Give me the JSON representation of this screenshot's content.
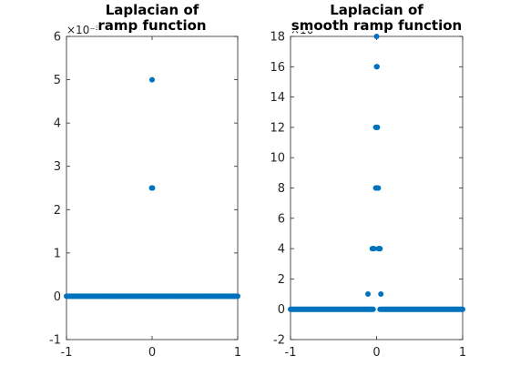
{
  "chart_data": [
    {
      "type": "scatter",
      "title_lines": [
        "Laplacian of",
        "ramp function"
      ],
      "xlabel": "",
      "ylabel": "",
      "xlim": [
        -1,
        1
      ],
      "ylim": [
        -0.001,
        0.006
      ],
      "xticks": [
        -1,
        0,
        1
      ],
      "xtick_labels": [
        "-1",
        "0",
        "1"
      ],
      "yticks": [
        -0.001,
        0,
        0.001,
        0.002,
        0.003,
        0.004,
        0.005,
        0.006
      ],
      "ytick_labels": [
        "-1",
        "0",
        "1",
        "2",
        "3",
        "4",
        "5",
        "6"
      ],
      "y_exponent_label": "×10⁻³",
      "grid": false,
      "marker_color": "#0072BD",
      "series": [
        {
          "baseline": {
            "x_range": [
              -1,
              1
            ],
            "y": 0,
            "step": 0.01
          },
          "points": [
            {
              "x": -0.005,
              "y": 0.0025
            },
            {
              "x": 0.0,
              "y": 0.0025
            },
            {
              "x": 0.005,
              "y": 0.0025
            },
            {
              "x": 0.0,
              "y": 0.005
            }
          ]
        }
      ]
    },
    {
      "type": "scatter",
      "title_lines": [
        "Laplacian of",
        "smooth ramp function"
      ],
      "xlabel": "",
      "ylabel": "",
      "xlim": [
        -1,
        1
      ],
      "ylim": [
        -0.0002,
        0.0018
      ],
      "xticks": [
        -1,
        0,
        1
      ],
      "xtick_labels": [
        "-1",
        "0",
        "1"
      ],
      "yticks": [
        -0.0002,
        0,
        0.0002,
        0.0004,
        0.0006,
        0.0008,
        0.001,
        0.0012,
        0.0014,
        0.0016,
        0.0018
      ],
      "ytick_labels": [
        "-2",
        "0",
        "2",
        "4",
        "6",
        "8",
        "10",
        "12",
        "14",
        "16",
        "18"
      ],
      "y_exponent_label": "×10⁻⁴",
      "grid": false,
      "marker_color": "#0072BD",
      "series": [
        {
          "baseline": {
            "x_range": [
              -1,
              1
            ],
            "y": 0,
            "step": 0.01,
            "gap": [
              -0.04,
              0.04
            ]
          },
          "points": [
            {
              "x": -0.1,
              "y": 0.0001
            },
            {
              "x": -0.05,
              "y": 0.0004
            },
            {
              "x": -0.04,
              "y": 0.0004
            },
            {
              "x": -0.03,
              "y": 0.0004
            },
            {
              "x": 0.02,
              "y": 0.0004
            },
            {
              "x": 0.03,
              "y": 0.0004
            },
            {
              "x": 0.04,
              "y": 0.0004
            },
            {
              "x": 0.05,
              "y": 0.0001
            },
            {
              "x": -0.01,
              "y": 0.0008
            },
            {
              "x": 0.0,
              "y": 0.0008
            },
            {
              "x": 0.01,
              "y": 0.0008
            },
            {
              "x": 0.02,
              "y": 0.0008
            },
            {
              "x": -0.01,
              "y": 0.0012
            },
            {
              "x": 0.0,
              "y": 0.0012
            },
            {
              "x": 0.01,
              "y": 0.0012
            },
            {
              "x": 0.0,
              "y": 0.0016
            },
            {
              "x": 0.005,
              "y": 0.0016
            },
            {
              "x": 0.0,
              "y": 0.0018
            }
          ]
        }
      ]
    }
  ]
}
